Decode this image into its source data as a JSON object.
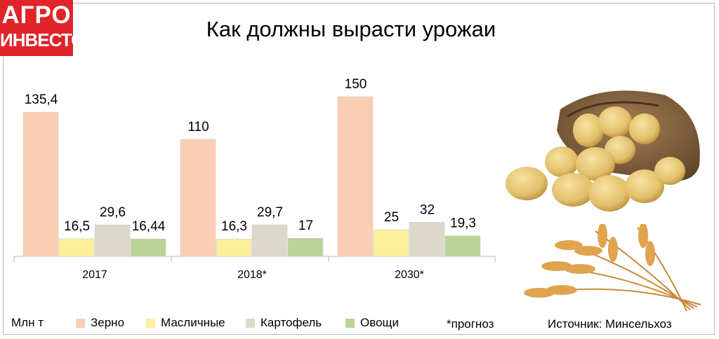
{
  "logo": {
    "line1": "АГРО",
    "line2": "ИНВЕСТОР"
  },
  "title": "Как должны вырасти урожаи",
  "unit_label": "Млн т",
  "note": "*прогноз",
  "source": "Источник: Минсельхоз",
  "colors": {
    "grain": "#fbcdb3",
    "oilseeds": "#fdf09b",
    "potato": "#dcd9ca",
    "vegetables": "#bad495"
  },
  "chart_data": {
    "type": "bar",
    "categories": [
      "2017",
      "2018*",
      "2030*"
    ],
    "series": [
      {
        "name": "Зерно",
        "values": [
          135.4,
          110,
          150
        ],
        "labels": [
          "135,4",
          "110",
          "150"
        ]
      },
      {
        "name": "Масличные",
        "values": [
          16.5,
          16.3,
          25
        ],
        "labels": [
          "16,5",
          "16,3",
          "25"
        ]
      },
      {
        "name": "Картофель",
        "values": [
          29.6,
          29.7,
          32
        ],
        "labels": [
          "29,6",
          "29,7",
          "32"
        ]
      },
      {
        "name": "Овощи",
        "values": [
          16.44,
          17,
          19.3
        ],
        "labels": [
          "16,44",
          "17",
          "19,3"
        ]
      }
    ],
    "ylim": [
      0,
      150
    ]
  }
}
